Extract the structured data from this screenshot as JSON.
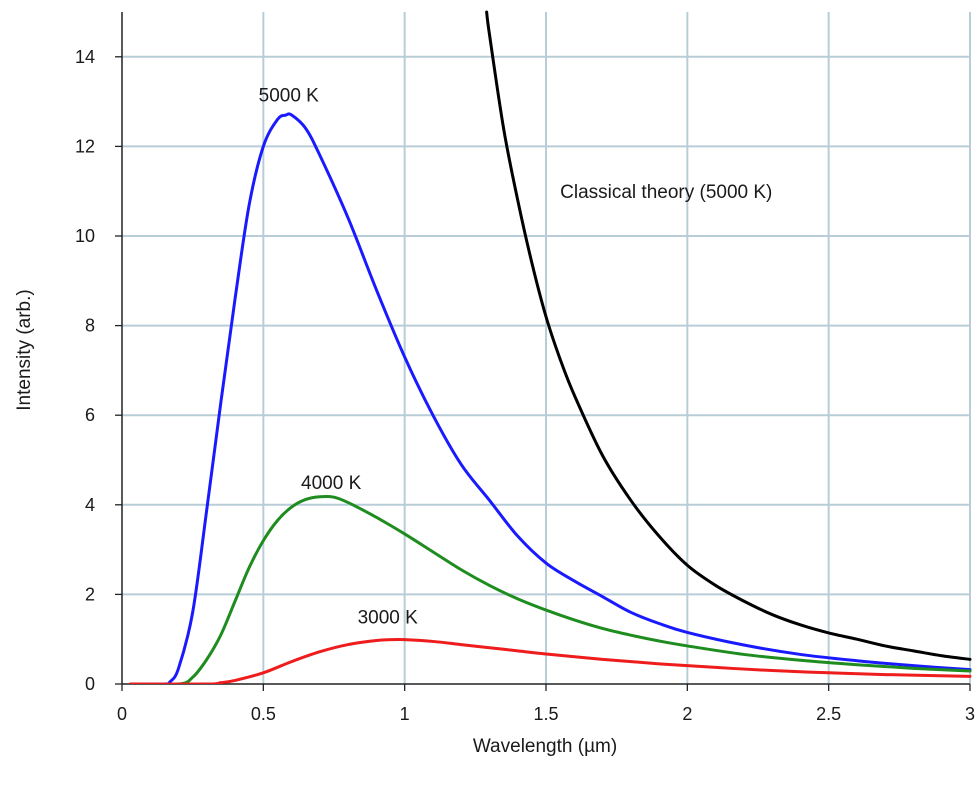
{
  "chart_data": {
    "type": "line",
    "title": "",
    "xlabel": "Wavelength (µm)",
    "ylabel": "Intensity (arb.)",
    "xlim": [
      0,
      3
    ],
    "ylim": [
      0,
      15
    ],
    "grid": true,
    "grid_color": "#b8cdd8",
    "x_ticks": [
      0,
      0.5,
      1,
      1.5,
      2,
      2.5,
      3
    ],
    "x_tick_labels": [
      "0",
      "0.5",
      "1",
      "1.5",
      "2",
      "2.5",
      "3"
    ],
    "y_ticks": [
      0,
      2,
      4,
      6,
      8,
      10,
      12,
      14
    ],
    "y_tick_labels": [
      "0",
      "2",
      "4",
      "6",
      "8",
      "10",
      "12",
      "14"
    ],
    "series": [
      {
        "label": "5000 K",
        "color": "#1a1aff",
        "points": [
          [
            0.03,
            0
          ],
          [
            0.15,
            0.0
          ],
          [
            0.17,
            0.05
          ],
          [
            0.2,
            0.35
          ],
          [
            0.25,
            1.6
          ],
          [
            0.3,
            3.9
          ],
          [
            0.35,
            6.3
          ],
          [
            0.4,
            8.6
          ],
          [
            0.45,
            10.7
          ],
          [
            0.5,
            12.0
          ],
          [
            0.55,
            12.6
          ],
          [
            0.58,
            12.7
          ],
          [
            0.6,
            12.7
          ],
          [
            0.65,
            12.4
          ],
          [
            0.7,
            11.8
          ],
          [
            0.8,
            10.4
          ],
          [
            0.9,
            8.8
          ],
          [
            1.0,
            7.3
          ],
          [
            1.1,
            6.0
          ],
          [
            1.2,
            4.9
          ],
          [
            1.3,
            4.1
          ],
          [
            1.4,
            3.3
          ],
          [
            1.5,
            2.7
          ],
          [
            1.6,
            2.3
          ],
          [
            1.7,
            1.95
          ],
          [
            1.8,
            1.6
          ],
          [
            1.9,
            1.35
          ],
          [
            2.0,
            1.15
          ],
          [
            2.2,
            0.87
          ],
          [
            2.4,
            0.66
          ],
          [
            2.6,
            0.52
          ],
          [
            2.8,
            0.41
          ],
          [
            3.0,
            0.32
          ]
        ]
      },
      {
        "label": "4000 K",
        "color": "#1e8c1e",
        "points": [
          [
            0.03,
            0
          ],
          [
            0.2,
            0.0
          ],
          [
            0.25,
            0.15
          ],
          [
            0.3,
            0.55
          ],
          [
            0.35,
            1.1
          ],
          [
            0.4,
            1.85
          ],
          [
            0.45,
            2.6
          ],
          [
            0.5,
            3.2
          ],
          [
            0.55,
            3.65
          ],
          [
            0.6,
            3.95
          ],
          [
            0.65,
            4.12
          ],
          [
            0.7,
            4.18
          ],
          [
            0.75,
            4.17
          ],
          [
            0.8,
            4.05
          ],
          [
            0.9,
            3.72
          ],
          [
            1.0,
            3.35
          ],
          [
            1.1,
            2.95
          ],
          [
            1.2,
            2.55
          ],
          [
            1.3,
            2.2
          ],
          [
            1.4,
            1.9
          ],
          [
            1.5,
            1.65
          ],
          [
            1.6,
            1.43
          ],
          [
            1.7,
            1.24
          ],
          [
            1.8,
            1.09
          ],
          [
            1.9,
            0.96
          ],
          [
            2.0,
            0.85
          ],
          [
            2.2,
            0.66
          ],
          [
            2.4,
            0.53
          ],
          [
            2.6,
            0.43
          ],
          [
            2.8,
            0.35
          ],
          [
            3.0,
            0.29
          ]
        ]
      },
      {
        "label": "3000 K",
        "color": "#ee1c1c",
        "points": [
          [
            0.03,
            0
          ],
          [
            0.3,
            0.0
          ],
          [
            0.35,
            0.03
          ],
          [
            0.4,
            0.08
          ],
          [
            0.5,
            0.25
          ],
          [
            0.6,
            0.5
          ],
          [
            0.7,
            0.72
          ],
          [
            0.8,
            0.88
          ],
          [
            0.9,
            0.97
          ],
          [
            0.95,
            0.99
          ],
          [
            1.0,
            0.99
          ],
          [
            1.1,
            0.95
          ],
          [
            1.2,
            0.88
          ],
          [
            1.3,
            0.81
          ],
          [
            1.4,
            0.74
          ],
          [
            1.5,
            0.67
          ],
          [
            1.7,
            0.55
          ],
          [
            1.9,
            0.45
          ],
          [
            2.1,
            0.37
          ],
          [
            2.3,
            0.3
          ],
          [
            2.5,
            0.25
          ],
          [
            2.7,
            0.21
          ],
          [
            3.0,
            0.17
          ]
        ]
      },
      {
        "label": "Classical theory (5000 K)",
        "color": "#000000",
        "points": [
          [
            1.29,
            15.0
          ],
          [
            1.3,
            14.5
          ],
          [
            1.35,
            12.4
          ],
          [
            1.4,
            10.8
          ],
          [
            1.45,
            9.4
          ],
          [
            1.5,
            8.2
          ],
          [
            1.55,
            7.25
          ],
          [
            1.6,
            6.45
          ],
          [
            1.7,
            5.1
          ],
          [
            1.8,
            4.1
          ],
          [
            1.9,
            3.3
          ],
          [
            2.0,
            2.65
          ],
          [
            2.1,
            2.2
          ],
          [
            2.2,
            1.85
          ],
          [
            2.3,
            1.55
          ],
          [
            2.4,
            1.32
          ],
          [
            2.5,
            1.14
          ],
          [
            2.6,
            1.0
          ],
          [
            2.7,
            0.85
          ],
          [
            2.8,
            0.74
          ],
          [
            2.9,
            0.63
          ],
          [
            3.0,
            0.55
          ]
        ]
      }
    ],
    "annotations": [
      {
        "text": "5000 K",
        "x": 0.59,
        "y": 13.0
      },
      {
        "text": "4000 K",
        "x": 0.74,
        "y": 4.35
      },
      {
        "text": "3000 K",
        "x": 0.94,
        "y": 1.35
      },
      {
        "text": "Classical theory (5000 K)",
        "x": 1.55,
        "y": 10.85
      }
    ]
  }
}
